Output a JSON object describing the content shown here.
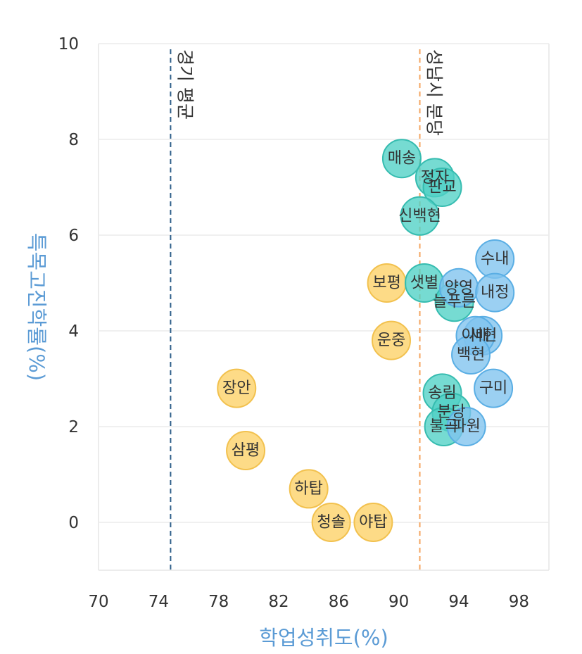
{
  "chart_data": {
    "type": "scatter",
    "xlabel": "학업성취도(%)",
    "ylabel": "특목고진학률(%)",
    "xlim": [
      70,
      100
    ],
    "ylim": [
      -1,
      10
    ],
    "x_ticks": [
      "70",
      "74",
      "78",
      "82",
      "86",
      "90",
      "94",
      "98"
    ],
    "y_ticks": [
      "10",
      "8",
      "6",
      "4",
      "2",
      "0"
    ],
    "grid": true,
    "reference_lines": [
      {
        "axis": "x",
        "value": 74.8,
        "label": "경기 평균",
        "color": "#2e5f8a"
      },
      {
        "axis": "x",
        "value": 91.4,
        "label": "성남시 분당",
        "color": "#f4a460"
      }
    ],
    "series": [
      {
        "color": "#fcd165",
        "stroke": "#f2c14e",
        "points": [
          {
            "label": "장안",
            "x": 79.2,
            "y": 2.8
          },
          {
            "label": "삼평",
            "x": 79.8,
            "y": 1.5
          },
          {
            "label": "하탑",
            "x": 84.0,
            "y": 0.7
          },
          {
            "label": "청솔",
            "x": 85.5,
            "y": 0.0
          },
          {
            "label": "야탑",
            "x": 88.3,
            "y": 0.0
          },
          {
            "label": "보평",
            "x": 89.2,
            "y": 5.0
          },
          {
            "label": "운중",
            "x": 89.5,
            "y": 3.8
          }
        ]
      },
      {
        "color": "#4fd1c5",
        "stroke": "#36bcb0",
        "points": [
          {
            "label": "매송",
            "x": 90.2,
            "y": 7.6
          },
          {
            "label": "정자",
            "x": 92.4,
            "y": 7.2
          },
          {
            "label": "판교",
            "x": 92.9,
            "y": 7.0
          },
          {
            "label": "신백현",
            "x": 91.4,
            "y": 6.4
          },
          {
            "label": "샛별",
            "x": 91.7,
            "y": 5.0
          },
          {
            "label": "늘푸른",
            "x": 93.7,
            "y": 4.6
          },
          {
            "label": "송림",
            "x": 92.9,
            "y": 2.7
          },
          {
            "label": "분당",
            "x": 93.5,
            "y": 2.3
          },
          {
            "label": "불곡",
            "x": 93.0,
            "y": 2.0
          }
        ]
      },
      {
        "color": "#7fc3ee",
        "stroke": "#5aaee4",
        "points": [
          {
            "label": "수내",
            "x": 96.4,
            "y": 5.5
          },
          {
            "label": "양영",
            "x": 94.0,
            "y": 4.9
          },
          {
            "label": "내정",
            "x": 96.4,
            "y": 4.8
          },
          {
            "label": "서현",
            "x": 95.6,
            "y": 3.9
          },
          {
            "label": "이매",
            "x": 95.1,
            "y": 3.9
          },
          {
            "label": "백현",
            "x": 94.8,
            "y": 3.5
          },
          {
            "label": "구미",
            "x": 96.3,
            "y": 2.8
          },
          {
            "label": "파원",
            "x": 94.5,
            "y": 2.0
          }
        ]
      }
    ]
  }
}
